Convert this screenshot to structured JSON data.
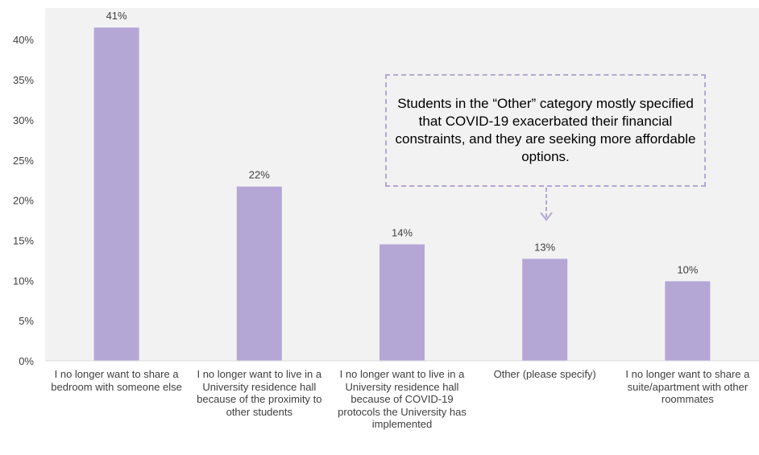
{
  "chart_data": {
    "type": "bar",
    "categories": [
      "I no longer want to share a bedroom with someone else",
      "I no longer want to live in a University residence hall because of the proximity to other students",
      "I no longer want to live in a University residence hall because of COVID-19 protocols the University has implemented",
      "Other (please specify)",
      "I no longer want to share a suite/apartment with other roommates"
    ],
    "values": [
      41.5,
      21.7,
      14.5,
      12.7,
      9.9
    ],
    "data_labels": [
      "41%",
      "22%",
      "14%",
      "13%",
      "10%"
    ],
    "ylim": [
      0,
      40
    ],
    "y_ticks": [
      "0%",
      "5%",
      "10%",
      "15%",
      "20%",
      "25%",
      "30%",
      "35%",
      "40%"
    ],
    "y_tick_values": [
      0,
      5,
      10,
      15,
      20,
      25,
      30,
      35,
      40
    ],
    "grid": false,
    "annotation": "Students in the “Other” category mostly specified that COVID-19 exacerbated their financial constraints, and they are seeking more affordable options.",
    "colors": {
      "plot_background": "#f2f2f2",
      "bar": "#b4a7d6",
      "annotation_border": "#b4a7d6",
      "axis_text": "#404040"
    }
  }
}
